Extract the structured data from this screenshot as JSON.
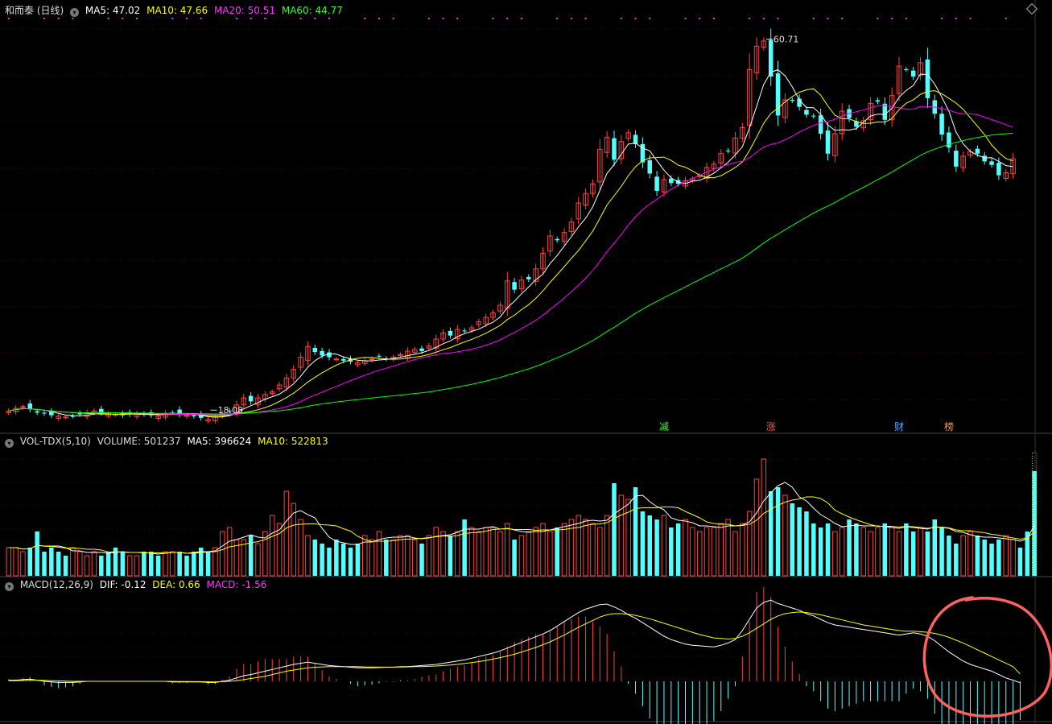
{
  "header": {
    "title": "和而泰 (日线)",
    "ma5": "MA5: 47.02",
    "ma10": "MA10: 47.66",
    "ma20": "MA20: 50.51",
    "ma60": "MA60: 44.77"
  },
  "vol_header": {
    "name": "VOL-TDX(5,10)",
    "volume": "VOLUME: 501237",
    "ma5": "MA5: 396624",
    "ma10": "MA10: 522813"
  },
  "macd_header": {
    "name": "MACD(12,26,9)",
    "dif": "DIF: -0.12",
    "dea": "DEA: 0.66",
    "macd": "MACD: -1.56"
  },
  "annotations": {
    "high_label": "60.71",
    "low_label": "18.08",
    "marker_jian": "减",
    "marker_zhang": "涨",
    "marker_cai": "财",
    "marker_bang": "榜"
  },
  "colors": {
    "background": "#000000",
    "up": "#ff4040",
    "down": "#54ffff",
    "ma5": "#ffffff",
    "ma10": "#ffff00",
    "ma20": "#ff00ff",
    "ma60": "#00ff00",
    "grid": "#7f1b1b",
    "annotation_circle": "#ff6060"
  },
  "chart_data": [
    {
      "type": "candlestick",
      "title": "和而泰 (日线)",
      "ylim": [
        15.5,
        63
      ],
      "note_series": [
        "MA5",
        "MA10",
        "MA20",
        "MA60"
      ],
      "close": [
        17.8,
        18.1,
        18.3,
        18.0,
        17.6,
        17.5,
        17.3,
        17.2,
        17.1,
        17.2,
        17.4,
        17.6,
        17.8,
        17.6,
        17.5,
        17.4,
        17.3,
        17.4,
        17.5,
        17.4,
        17.3,
        17.2,
        17.5,
        17.6,
        17.4,
        17.3,
        17.2,
        17.0,
        16.8,
        17.1,
        17.5,
        17.8,
        18.5,
        19.3,
        18.9,
        19.3,
        19.7,
        20.0,
        20.8,
        21.6,
        22.6,
        24.0,
        25.2,
        24.6,
        24.2,
        24.0,
        23.8,
        23.6,
        23.5,
        23.4,
        23.6,
        23.8,
        24.1,
        23.8,
        24.0,
        24.3,
        24.7,
        24.9,
        24.7,
        25.3,
        26.1,
        26.8,
        26.5,
        27.2,
        27.0,
        27.4,
        28.1,
        28.6,
        29.1,
        30.0,
        32.8,
        31.8,
        32.9,
        33.0,
        34.2,
        36.0,
        38.0,
        37.5,
        38.4,
        39.6,
        41.8,
        42.9,
        44.0,
        48.0,
        49.4,
        46.8,
        48.9,
        49.9,
        48.6,
        46.5,
        45.2,
        43.2,
        44.5,
        44.1,
        44.0,
        44.4,
        44.6,
        45.0,
        45.9,
        46.3,
        47.5,
        47.8,
        49.3,
        50.5,
        57.2,
        59.9,
        60.5,
        56.4,
        51.9,
        53.7,
        53.6,
        52.9,
        52.0,
        51.8,
        49.8,
        47.5,
        49.8,
        52.4,
        51.6,
        50.6,
        51.3,
        53.3,
        53.5,
        51.4,
        54.2,
        57.6,
        57.2,
        56.4,
        58.0,
        53.9,
        52.1,
        49.7,
        48.2,
        46.0,
        47.2,
        47.7,
        47.5,
        46.6,
        46.2,
        45.0,
        45.3,
        46.9
      ],
      "extremes": {
        "high": 60.71,
        "low": 18.08
      },
      "ma5_last": 47.02,
      "ma10_last": 47.66,
      "ma20_last": 50.51,
      "ma60_last": 44.77
    },
    {
      "type": "bar",
      "title": "VOL-TDX(5,10)",
      "volume_last": 501237,
      "ma5_last": 396624,
      "ma10_last": 522813,
      "values": [
        7,
        7,
        6,
        7,
        11,
        6,
        7,
        6,
        5,
        7,
        6,
        5,
        6,
        5,
        6,
        7,
        6,
        5,
        5,
        6,
        6,
        5,
        6,
        6,
        6,
        5,
        6,
        7,
        6,
        7,
        11,
        12,
        9,
        9,
        10,
        8,
        11,
        15,
        13,
        21,
        18,
        14,
        10,
        9,
        8,
        7,
        9,
        8,
        7,
        8,
        10,
        9,
        11,
        9,
        9,
        10,
        10,
        9,
        8,
        10,
        12,
        11,
        10,
        11,
        14,
        12,
        11,
        12,
        12,
        11,
        13,
        9,
        10,
        11,
        12,
        13,
        11,
        12,
        13,
        14,
        15,
        14,
        13,
        12,
        15,
        23,
        20,
        19,
        22,
        16,
        15,
        14,
        15,
        12,
        13,
        14,
        12,
        11,
        12,
        12,
        13,
        14,
        11,
        13,
        16,
        24,
        29,
        21,
        22,
        20,
        18,
        17,
        16,
        13,
        12,
        13,
        11,
        12,
        14,
        13,
        12,
        11,
        12,
        13,
        12,
        11,
        13,
        11,
        12,
        11,
        14,
        12,
        10,
        8,
        10,
        11,
        10,
        9,
        8,
        9,
        10,
        9,
        7,
        11,
        26
      ]
    },
    {
      "type": "bar",
      "title": "MACD(12,26,9)",
      "dif_last": -0.12,
      "dea_last": 0.66,
      "macd_last": -1.56,
      "dif": [
        0.1,
        0.1,
        0.15,
        0.2,
        0.1,
        0,
        -0.05,
        -0.1,
        -0.1,
        -0.1,
        -0.05,
        0,
        0,
        0,
        0,
        0,
        0,
        0,
        0,
        0,
        0,
        0,
        0,
        -0.05,
        -0.05,
        -0.05,
        -0.05,
        -0.05,
        -0.1,
        -0.1,
        0,
        0.1,
        0.3,
        0.5,
        0.6,
        0.75,
        0.9,
        1.05,
        1.2,
        1.35,
        1.5,
        1.6,
        1.7,
        1.6,
        1.5,
        1.4,
        1.35,
        1.3,
        1.25,
        1.2,
        1.2,
        1.2,
        1.22,
        1.25,
        1.25,
        1.3,
        1.3,
        1.35,
        1.4,
        1.45,
        1.5,
        1.6,
        1.7,
        1.8,
        1.9,
        2.05,
        2.2,
        2.35,
        2.5,
        2.7,
        2.95,
        3.2,
        3.45,
        3.7,
        3.95,
        4.2,
        4.5,
        4.9,
        5.3,
        5.7,
        6.1,
        6.4,
        6.6,
        6.8,
        6.85,
        6.6,
        6.3,
        5.9,
        5.6,
        5.2,
        4.8,
        4.4,
        4.0,
        3.7,
        3.5,
        3.3,
        3.2,
        3.15,
        3.1,
        3.05,
        3.2,
        3.4,
        3.7,
        4.5,
        5.5,
        6.5,
        7.0,
        7.2,
        6.9,
        6.7,
        6.5,
        6.3,
        6.0,
        5.8,
        5.5,
        5.2,
        5.0,
        4.9,
        4.8,
        4.7,
        4.6,
        4.5,
        4.4,
        4.3,
        4.2,
        4.1,
        4.2,
        4.3,
        4.2,
        4.0,
        3.6,
        3.1,
        2.6,
        2.2,
        1.8,
        1.5,
        1.3,
        1.1,
        0.9,
        0.6,
        0.3,
        0.1,
        -0.12
      ],
      "dea": [
        0.05,
        0.06,
        0.08,
        0.1,
        0.1,
        0.08,
        0.06,
        0.04,
        0.02,
        0,
        0,
        0,
        0,
        0,
        0,
        0,
        0,
        0,
        0,
        0,
        0,
        0,
        0,
        -0.01,
        -0.02,
        -0.02,
        -0.03,
        -0.03,
        -0.04,
        -0.05,
        -0.03,
        0,
        0.05,
        0.15,
        0.25,
        0.35,
        0.45,
        0.6,
        0.75,
        0.9,
        1.0,
        1.1,
        1.2,
        1.25,
        1.28,
        1.3,
        1.3,
        1.3,
        1.3,
        1.3,
        1.28,
        1.27,
        1.26,
        1.26,
        1.26,
        1.27,
        1.28,
        1.3,
        1.31,
        1.33,
        1.36,
        1.4,
        1.45,
        1.5,
        1.58,
        1.66,
        1.75,
        1.85,
        1.97,
        2.1,
        2.25,
        2.4,
        2.6,
        2.8,
        3.0,
        3.25,
        3.5,
        3.8,
        4.1,
        4.45,
        4.8,
        5.1,
        5.4,
        5.7,
        5.9,
        6.0,
        6.0,
        5.95,
        5.85,
        5.7,
        5.55,
        5.35,
        5.15,
        4.95,
        4.75,
        4.55,
        4.35,
        4.15,
        4.0,
        3.85,
        3.8,
        3.75,
        3.8,
        4.0,
        4.3,
        4.7,
        5.1,
        5.5,
        5.8,
        6.0,
        6.1,
        6.15,
        6.1,
        6.0,
        5.9,
        5.75,
        5.6,
        5.45,
        5.3,
        5.15,
        5.0,
        4.9,
        4.8,
        4.7,
        4.6,
        4.5,
        4.45,
        4.45,
        4.4,
        4.35,
        4.25,
        4.1,
        3.9,
        3.65,
        3.4,
        3.1,
        2.8,
        2.5,
        2.2,
        1.9,
        1.6,
        1.3,
        0.66
      ]
    }
  ]
}
